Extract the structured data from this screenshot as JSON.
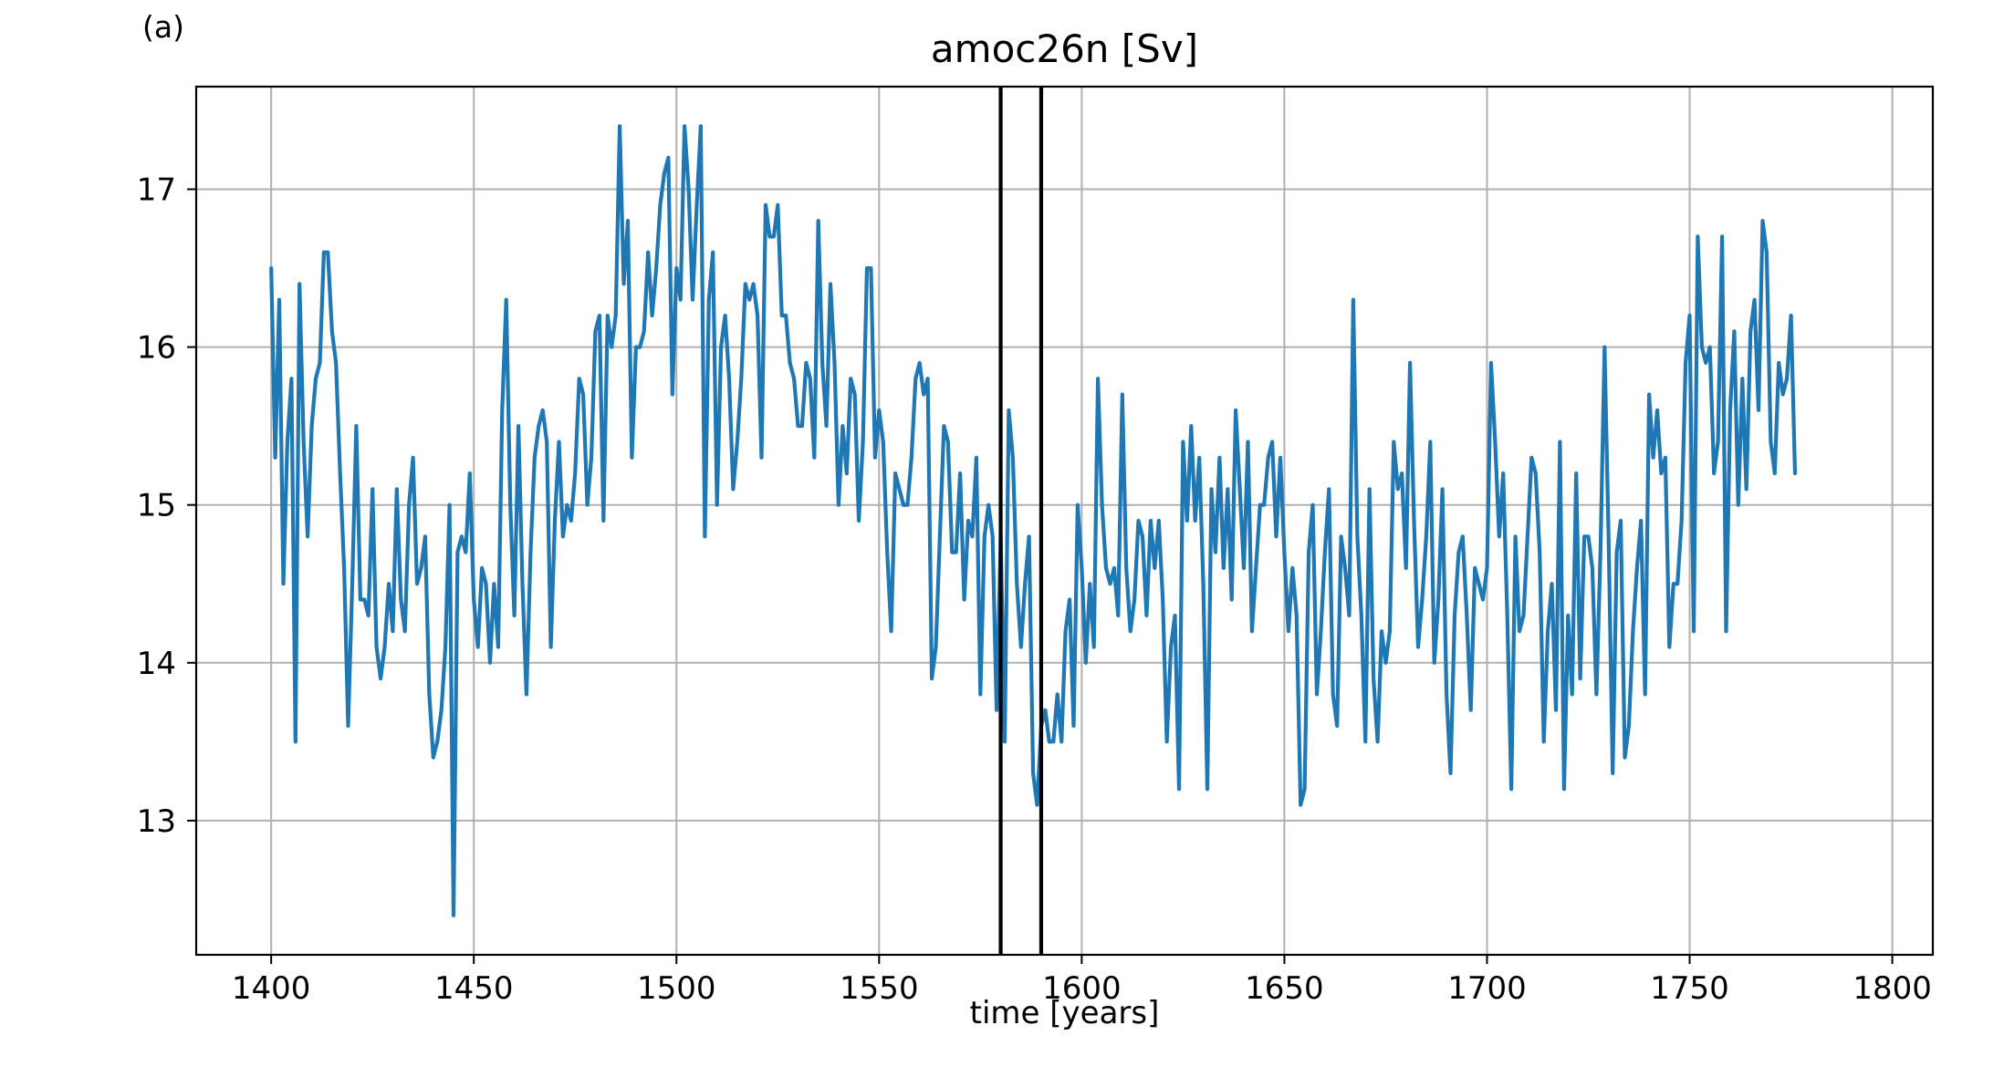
{
  "panel_label": "(a)",
  "chart_data": {
    "type": "line",
    "title": "amoc26n [Sv]",
    "xlabel": "time [years]",
    "ylabel": "",
    "xlim": [
      1381.5,
      1810
    ],
    "ylim": [
      12.15,
      17.65
    ],
    "xticks": [
      1400,
      1450,
      1500,
      1550,
      1600,
      1650,
      1700,
      1750,
      1800
    ],
    "yticks": [
      13,
      14,
      15,
      16,
      17
    ],
    "grid": true,
    "series": [
      {
        "color": "#1f77b4",
        "x_start": 1400,
        "x_step": 1,
        "values": [
          16.5,
          15.3,
          16.3,
          14.5,
          15.4,
          15.8,
          13.5,
          16.4,
          15.4,
          14.8,
          15.5,
          15.8,
          15.9,
          16.6,
          16.6,
          16.1,
          15.9,
          15.2,
          14.6,
          13.6,
          14.5,
          15.5,
          14.4,
          14.4,
          14.3,
          15.1,
          14.1,
          13.9,
          14.1,
          14.5,
          14.2,
          15.1,
          14.4,
          14.2,
          15.0,
          15.3,
          14.5,
          14.6,
          14.8,
          13.8,
          13.4,
          13.5,
          13.7,
          14.1,
          15.0,
          12.4,
          14.7,
          14.8,
          14.7,
          15.2,
          14.4,
          14.1,
          14.6,
          14.5,
          14.0,
          14.5,
          14.1,
          15.6,
          16.3,
          15.0,
          14.3,
          15.5,
          14.5,
          13.8,
          14.7,
          15.3,
          15.5,
          15.6,
          15.4,
          14.1,
          14.9,
          15.4,
          14.8,
          15.0,
          14.9,
          15.2,
          15.8,
          15.7,
          15.0,
          15.3,
          16.1,
          16.2,
          14.9,
          16.2,
          16.0,
          16.2,
          17.4,
          16.4,
          16.8,
          15.3,
          16.0,
          16.0,
          16.1,
          16.6,
          16.2,
          16.5,
          16.9,
          17.1,
          17.2,
          15.7,
          16.5,
          16.3,
          17.4,
          17.0,
          16.3,
          16.9,
          17.4,
          14.8,
          16.3,
          16.6,
          15.0,
          16.0,
          16.2,
          15.8,
          15.1,
          15.4,
          15.8,
          16.4,
          16.3,
          16.4,
          16.2,
          15.3,
          16.9,
          16.7,
          16.7,
          16.9,
          16.2,
          16.2,
          15.9,
          15.8,
          15.5,
          15.5,
          15.9,
          15.8,
          15.3,
          16.8,
          15.9,
          15.5,
          16.4,
          15.9,
          15.0,
          15.5,
          15.2,
          15.8,
          15.7,
          14.9,
          15.4,
          16.5,
          16.5,
          15.3,
          15.6,
          15.4,
          14.7,
          14.2,
          15.2,
          15.1,
          15.0,
          15.0,
          15.3,
          15.8,
          15.9,
          15.7,
          15.8,
          13.9,
          14.1,
          14.8,
          15.5,
          15.4,
          14.7,
          14.7,
          15.2,
          14.4,
          14.9,
          14.8,
          15.3,
          13.8,
          14.8,
          15.0,
          14.8,
          13.7,
          14.8,
          13.5,
          15.6,
          15.3,
          14.5,
          14.1,
          14.5,
          14.8,
          13.3,
          13.1,
          13.6,
          13.7,
          13.5,
          13.5,
          13.8,
          13.5,
          14.2,
          14.4,
          13.6,
          15.0,
          14.6,
          14.0,
          14.5,
          14.1,
          15.8,
          15.0,
          14.6,
          14.5,
          14.6,
          14.3,
          15.7,
          14.6,
          14.2,
          14.4,
          14.9,
          14.8,
          14.3,
          14.9,
          14.6,
          14.9,
          14.4,
          13.5,
          14.1,
          14.3,
          13.2,
          15.4,
          14.9,
          15.5,
          14.9,
          15.3,
          14.5,
          13.2,
          15.1,
          14.7,
          15.3,
          14.6,
          15.1,
          14.4,
          15.6,
          15.1,
          14.6,
          15.4,
          14.2,
          14.6,
          15.0,
          15.0,
          15.3,
          15.4,
          14.8,
          15.3,
          14.7,
          14.2,
          14.6,
          14.3,
          13.1,
          13.2,
          14.7,
          15.0,
          13.8,
          14.2,
          14.7,
          15.1,
          13.8,
          13.6,
          14.8,
          14.6,
          14.3,
          16.3,
          14.8,
          14.3,
          13.5,
          15.1,
          13.9,
          13.5,
          14.2,
          14.0,
          14.2,
          15.4,
          15.1,
          15.2,
          14.6,
          15.9,
          14.9,
          14.1,
          14.4,
          14.8,
          15.4,
          14.0,
          14.4,
          15.1,
          13.8,
          13.3,
          14.3,
          14.7,
          14.8,
          14.3,
          13.7,
          14.6,
          14.5,
          14.4,
          14.6,
          15.9,
          15.4,
          14.8,
          15.2,
          14.3,
          13.2,
          14.8,
          14.2,
          14.3,
          14.8,
          15.3,
          15.2,
          14.7,
          13.5,
          14.2,
          14.5,
          13.7,
          15.4,
          13.2,
          14.3,
          13.8,
          15.2,
          13.9,
          14.8,
          14.8,
          14.6,
          13.8,
          14.7,
          16.0,
          14.8,
          13.3,
          14.7,
          14.9,
          13.4,
          13.6,
          14.2,
          14.6,
          14.9,
          13.8,
          15.7,
          15.3,
          15.6,
          15.2,
          15.3,
          14.1,
          14.5,
          14.5,
          14.9,
          15.9,
          16.2,
          14.2,
          16.7,
          16.0,
          15.9,
          16.0,
          15.2,
          15.4,
          16.7,
          14.2,
          15.6,
          16.1,
          15.0,
          15.8,
          15.1,
          16.1,
          16.3,
          15.6,
          16.8,
          16.6,
          15.4,
          15.2,
          15.9,
          15.7,
          15.8,
          16.2,
          15.2
        ]
      }
    ],
    "vlines": [
      1580,
      1590
    ],
    "vline_color": "#000000"
  }
}
